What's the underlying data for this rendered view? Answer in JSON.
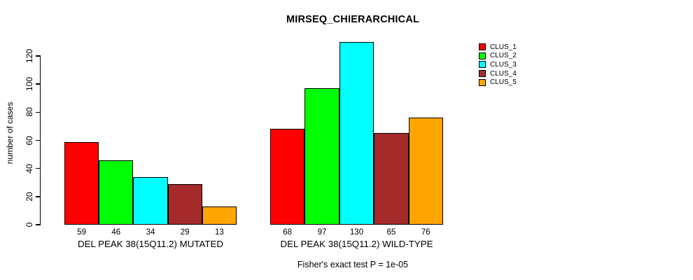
{
  "chart_data": {
    "type": "bar",
    "title": "MIRSEQ_CHIERARCHICAL",
    "ylabel": "number of cases",
    "footer": "Fisher's exact test P = 1e-05",
    "ylim": [
      0,
      130
    ],
    "yticks": [
      0,
      20,
      40,
      60,
      80,
      100,
      120
    ],
    "grid": false,
    "legend_position": "top-right",
    "categories": [
      "CLUS_1",
      "CLUS_2",
      "CLUS_3",
      "CLUS_4",
      "CLUS_5"
    ],
    "colors": [
      "#FF0000",
      "#00FF00",
      "#00FFFF",
      "#A52A2A",
      "#FFA500"
    ],
    "groups": [
      {
        "label": "DEL PEAK 38(15Q11.2) MUTATED",
        "values": [
          59,
          46,
          34,
          29,
          13
        ]
      },
      {
        "label": "DEL PEAK 38(15Q11.2) WILD-TYPE",
        "values": [
          68,
          97,
          130,
          65,
          76
        ]
      }
    ],
    "legend": {
      "entries": [
        "CLUS_1",
        "CLUS_2",
        "CLUS_3",
        "CLUS_4",
        "CLUS_5"
      ]
    }
  }
}
